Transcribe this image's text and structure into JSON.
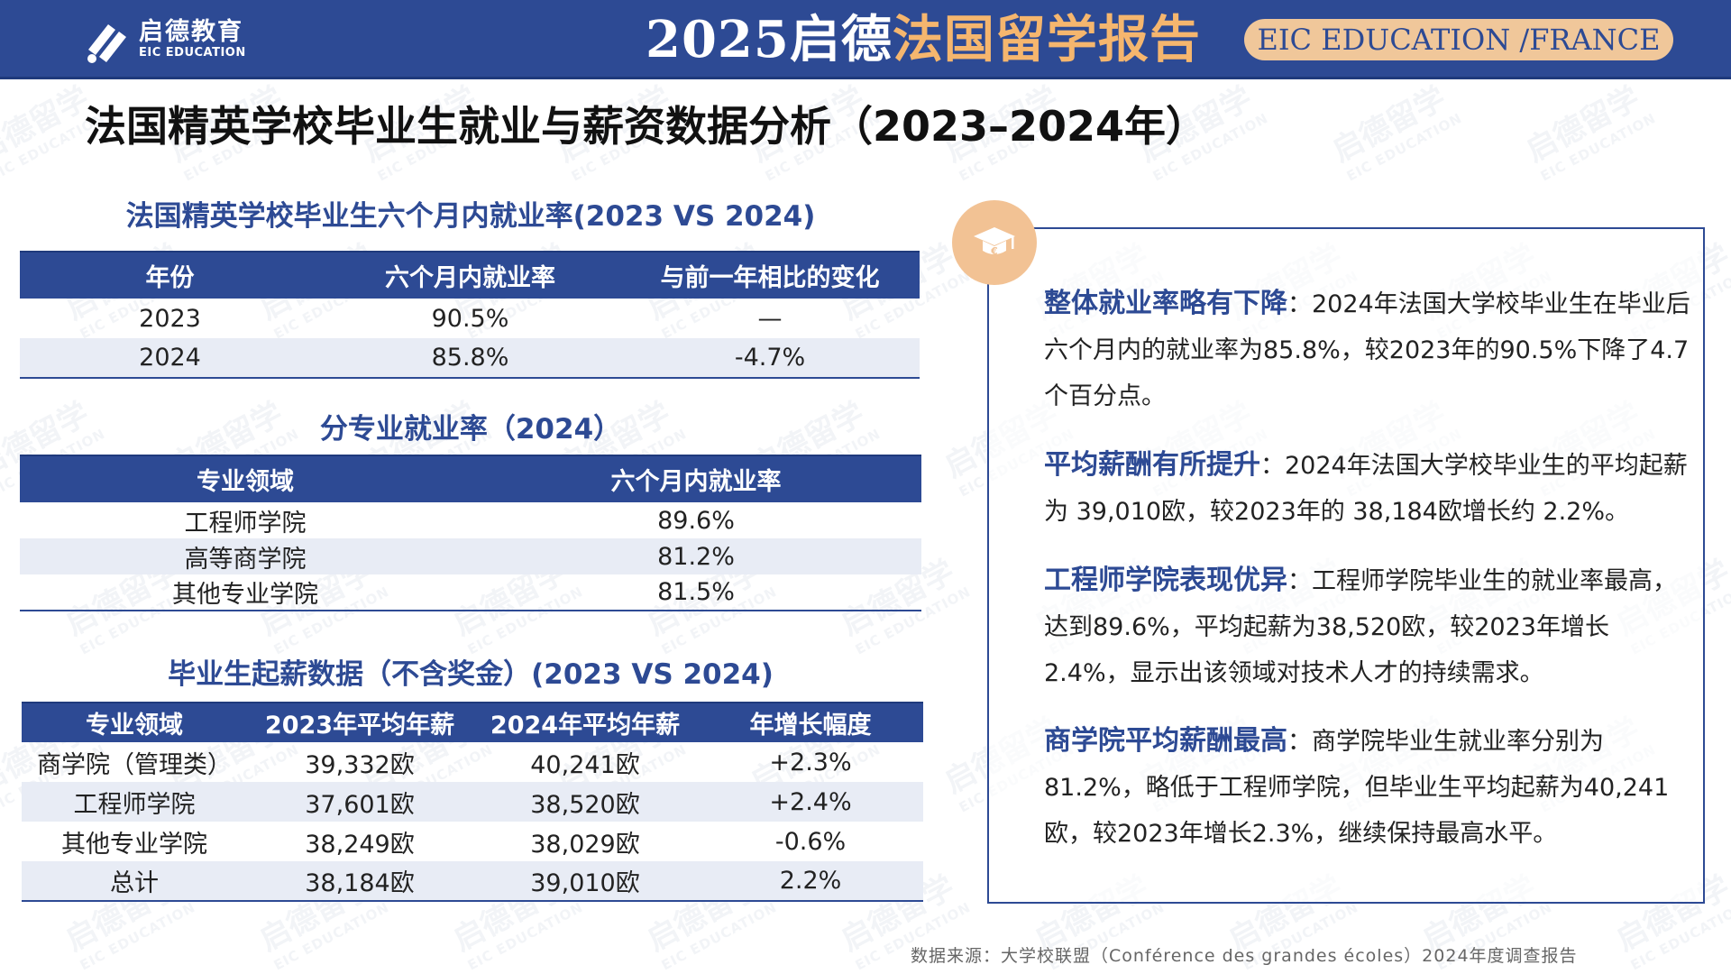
{
  "header": {
    "logo_cn": "启德教育",
    "logo_en": "EIC EDUCATION",
    "title_part1": "2025启德",
    "title_part2": "法国留学报告",
    "pill": "EIC EDUCATION /FRANCE"
  },
  "page_title": "法国精英学校毕业生就业与薪资数据分析（2023–2024年）",
  "table1": {
    "title": "法国精英学校毕业生六个月内就业率(2023 VS 2024)",
    "headers": [
      "年份",
      "六个月内就业率",
      "与前一年相比的变化"
    ],
    "rows": [
      [
        "2023",
        "90.5%",
        "—"
      ],
      [
        "2024",
        "85.8%",
        "-4.7%"
      ]
    ]
  },
  "table2": {
    "title": "分专业就业率（2024）",
    "headers": [
      "专业领域",
      "六个月内就业率"
    ],
    "rows": [
      [
        "工程师学院",
        "89.6%"
      ],
      [
        "高等商学院",
        "81.2%"
      ],
      [
        "其他专业学院",
        "81.5%"
      ]
    ]
  },
  "table3": {
    "title": "毕业生起薪数据（不含奖金）(2023 VS 2024)",
    "headers": [
      "专业领域",
      "2023年平均年薪",
      "2024年平均年薪",
      "年增长幅度"
    ],
    "rows": [
      [
        "商学院（管理类）",
        "39,332欧",
        "40,241欧",
        "+2.3%"
      ],
      [
        "工程师学院",
        "37,601欧",
        "38,520欧",
        "+2.4%"
      ],
      [
        "其他专业学院",
        "38,249欧",
        "38,029欧",
        "-0.6%"
      ],
      [
        "总计",
        "38,184欧",
        "39,010欧",
        "2.2%"
      ]
    ]
  },
  "analysis": [
    {
      "heading": "整体就业率略有下降",
      "text": "：2024年法国大学校毕业生在毕业后六个月内的就业率为85.8%，较2023年的90.5%下降了4.7个百分点。"
    },
    {
      "heading": "平均薪酬有所提升",
      "text": "：2024年法国大学校毕业生的平均起薪为 39,010欧，较2023年的 38,184欧增长约 2.2%。"
    },
    {
      "heading": "工程师学院表现优异",
      "text": "：工程师学院毕业生的就业率最高，达到89.6%，平均起薪为38,520欧，较2023年增长2.4%，显示出该领域对技术人才的持续需求。"
    },
    {
      "heading": "商学院平均薪酬最高",
      "text": "：商学院毕业生就业率分别为81.2%，略低于工程师学院，但毕业生平均起薪为40,241欧，较2023年增长2.3%，继续保持最高水平。"
    }
  ],
  "source": "数据来源：大学校联盟（Conférence des grandes écoles）2024年度调查报告",
  "watermark": {
    "cn": "启德留学",
    "en": "EIC EDUCATION"
  },
  "colors": {
    "primary": "#2d4a94",
    "accent": "#f5b66e",
    "pill": "#f0c79a",
    "row_alt": "#e8ecf5"
  },
  "icons": {
    "logo": "eic-logo-icon",
    "card": "graduation-cap-icon"
  }
}
